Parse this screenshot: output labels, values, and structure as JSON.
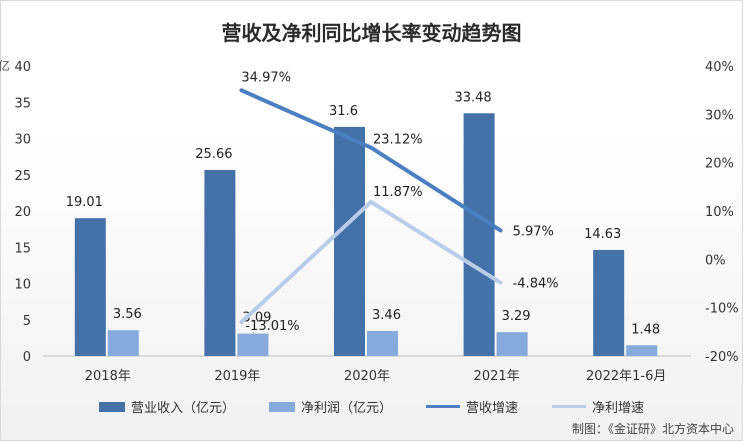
{
  "chart_data": {
    "type": "bar",
    "title": "营收及净利同比增长率变动趋势图",
    "categories": [
      "2018年",
      "2019年",
      "2020年",
      "2021年",
      "2022年1-6月"
    ],
    "series": [
      {
        "name": "营业收入（亿元）",
        "type": "bar",
        "axis": "left",
        "color": "#4472a8",
        "values": [
          19.01,
          25.66,
          31.6,
          33.48,
          14.63
        ],
        "labels": [
          "19.01",
          "25.66",
          "31.6",
          "33.48",
          "14.63"
        ]
      },
      {
        "name": "净利润（亿元）",
        "type": "bar",
        "axis": "left",
        "color": "#86aadb",
        "values": [
          3.56,
          3.09,
          3.46,
          3.29,
          1.48
        ],
        "labels": [
          "3.56",
          "3.09",
          "3.46",
          "3.29",
          "1.48"
        ]
      },
      {
        "name": "营收增速",
        "type": "line",
        "axis": "right",
        "color": "#4a7fc1",
        "values": [
          null,
          34.97,
          23.12,
          5.97,
          null
        ],
        "labels": [
          "",
          "34.97%",
          "23.12%",
          "5.97%",
          ""
        ]
      },
      {
        "name": "净利增速",
        "type": "line",
        "axis": "right",
        "color": "#b9cde9",
        "values": [
          null,
          -13.01,
          11.87,
          -4.84,
          null
        ],
        "labels": [
          "",
          "-13.01%",
          "11.87%",
          "-4.84%",
          ""
        ]
      }
    ],
    "ylim": [
      0,
      40
    ],
    "yticks": [
      "0",
      "5",
      "10",
      "15",
      "20",
      "25",
      "30",
      "35",
      "40"
    ],
    "y2lim": [
      -20,
      40
    ],
    "y2ticks": [
      "-20%",
      "-10%",
      "0%",
      "10%",
      "20%",
      "30%",
      "40%"
    ],
    "left_axis_clipped_label": "亿",
    "grid": false,
    "legend_position": "bottom"
  },
  "credit": "制图：《金证研》北方资本中心"
}
